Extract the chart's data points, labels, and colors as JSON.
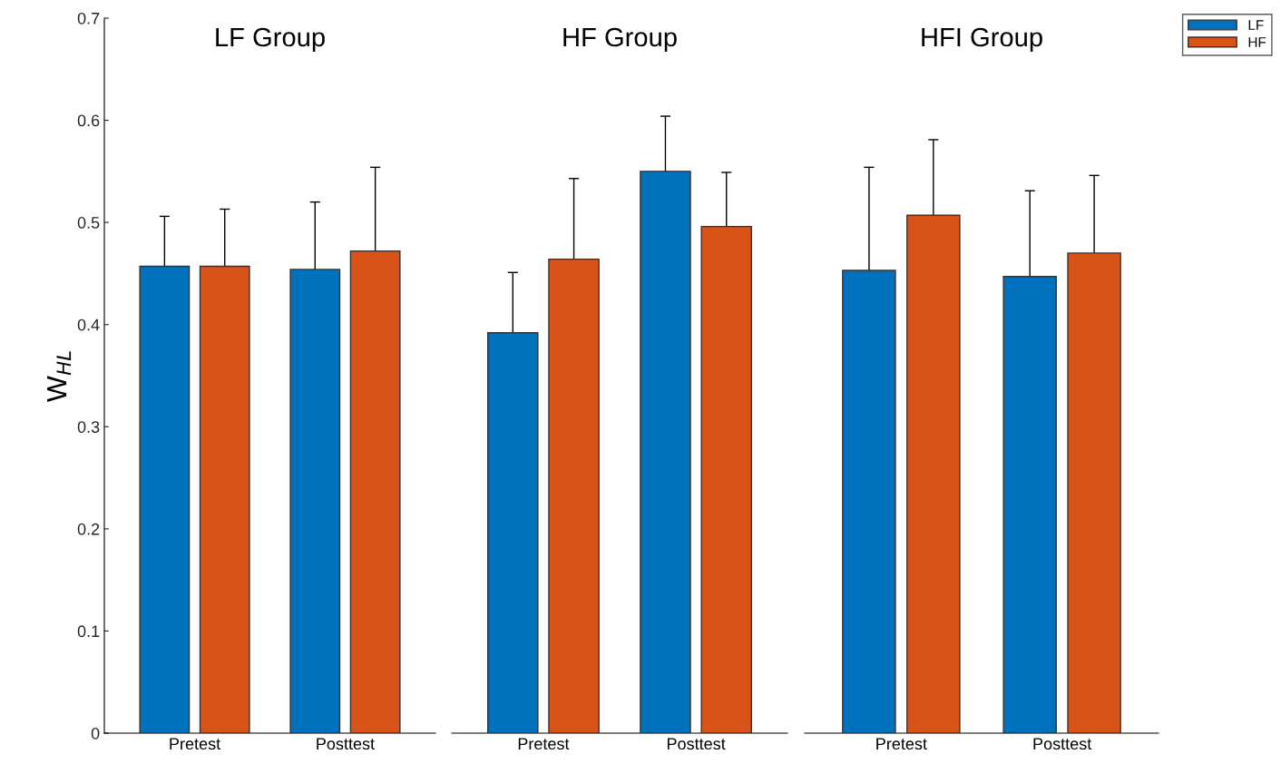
{
  "chart_data": [
    {
      "type": "bar",
      "title": "LF Group",
      "ylabel": "W$_{HL}$",
      "categories": [
        "Pretest",
        "Posttest"
      ],
      "ylim": [
        0,
        0.7
      ],
      "yticks": [
        0,
        0.1,
        0.2,
        0.3,
        0.4,
        0.5,
        0.6,
        0.7
      ],
      "grid": false,
      "legend": "top right",
      "series": [
        {
          "name": "LF",
          "color": "#0072bd",
          "values": [
            0.457,
            0.454
          ],
          "errors": [
            0.049,
            0.066
          ]
        },
        {
          "name": "HF",
          "color": "#d95319",
          "values": [
            0.457,
            0.472
          ],
          "errors": [
            0.056,
            0.082
          ]
        }
      ]
    },
    {
      "type": "bar",
      "title": "HF Group",
      "categories": [
        "Pretest",
        "Posttest"
      ],
      "ylim": [
        0,
        0.7
      ],
      "tick_labels": "x",
      "grid": false,
      "series": [
        {
          "color": "#0072bd",
          "values": [
            0.392,
            0.55
          ],
          "errors": [
            0.059,
            0.054
          ]
        },
        {
          "color": "#d95319",
          "values": [
            0.464,
            0.496
          ],
          "errors": [
            0.079,
            0.053
          ]
        }
      ]
    },
    {
      "type": "bar",
      "title": "HFI Group",
      "categories": [
        "Pretest",
        "Posttest"
      ],
      "ylim": [
        0,
        0.7
      ],
      "tick_labels": "x",
      "grid": false,
      "series": [
        {
          "color": "#0072bd",
          "values": [
            0.453,
            0.447
          ],
          "errors": [
            0.101,
            0.084
          ]
        },
        {
          "color": "#d95319",
          "values": [
            0.507,
            0.47
          ],
          "errors": [
            0.074,
            0.076
          ]
        }
      ]
    }
  ]
}
